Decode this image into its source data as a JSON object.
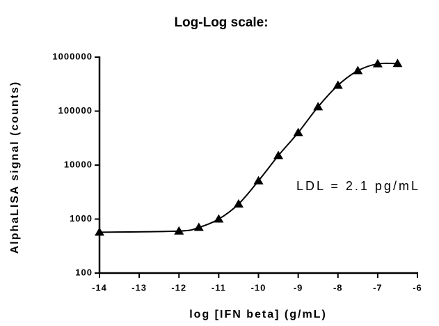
{
  "chart_data": {
    "type": "scatter",
    "title": "Log-Log scale:",
    "x_label": "log [IFN beta] (g/mL)",
    "y_label": "AlphaLISA signal (counts)",
    "annotation": "LDL = 2.1 pg/mL",
    "x": [
      -14,
      -12,
      -11.5,
      -11,
      -10.5,
      -10,
      -9.5,
      -9,
      -8.5,
      -8,
      -7.5,
      -7,
      -6.5
    ],
    "values": [
      570,
      600,
      700,
      1000,
      1900,
      5100,
      15000,
      40000,
      120000,
      300000,
      560000,
      750000,
      760000
    ],
    "color": "#000000",
    "marker": "triangle",
    "fit_curve": true,
    "xlim": [
      -14,
      -6
    ],
    "xticks": [
      -14,
      -13,
      -12,
      -11,
      -10,
      -9,
      -8,
      -7,
      -6
    ],
    "ylim": [
      100,
      1000000
    ],
    "yticks": [
      100,
      1000,
      10000,
      100000,
      1000000
    ],
    "log_y": true,
    "grid": false
  }
}
